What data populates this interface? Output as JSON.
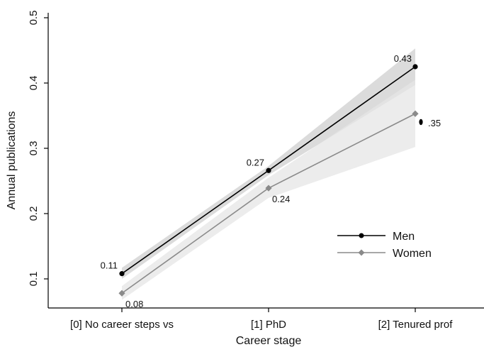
{
  "chart_data": {
    "type": "line",
    "title": "",
    "xlabel": "Career stage",
    "ylabel": "Annual publications",
    "categories": [
      "[0] No career steps vs",
      "[1] PhD",
      "[2] Tenured prof"
    ],
    "ylim": [
      0.04,
      0.5
    ],
    "yticks": [
      "0.1",
      "0.2",
      "0.3",
      "0.4",
      "0.5"
    ],
    "ytick_values": [
      0.1,
      0.2,
      0.3,
      0.4,
      0.5
    ],
    "grid": false,
    "legend_position": "bottom-right",
    "series": [
      {
        "name": "Men",
        "values": [
          0.108,
          0.266,
          0.425
        ],
        "labels": [
          "0.11",
          "0.27",
          "0.43"
        ],
        "ci_lower": [
          0.1,
          0.259,
          0.397
        ],
        "ci_upper": [
          0.117,
          0.273,
          0.453
        ],
        "color": "#000000",
        "band_color": "#cfcfcf",
        "marker": "circle"
      },
      {
        "name": "Women",
        "values": [
          0.078,
          0.239,
          0.353
        ],
        "labels": [
          "0.08",
          "0.24",
          ".35"
        ],
        "ci_lower": [
          0.068,
          0.224,
          0.302
        ],
        "ci_upper": [
          0.089,
          0.255,
          0.405
        ],
        "color": "#8a8a8a",
        "band_color": "#e6e6e6",
        "marker": "diamond"
      }
    ]
  }
}
